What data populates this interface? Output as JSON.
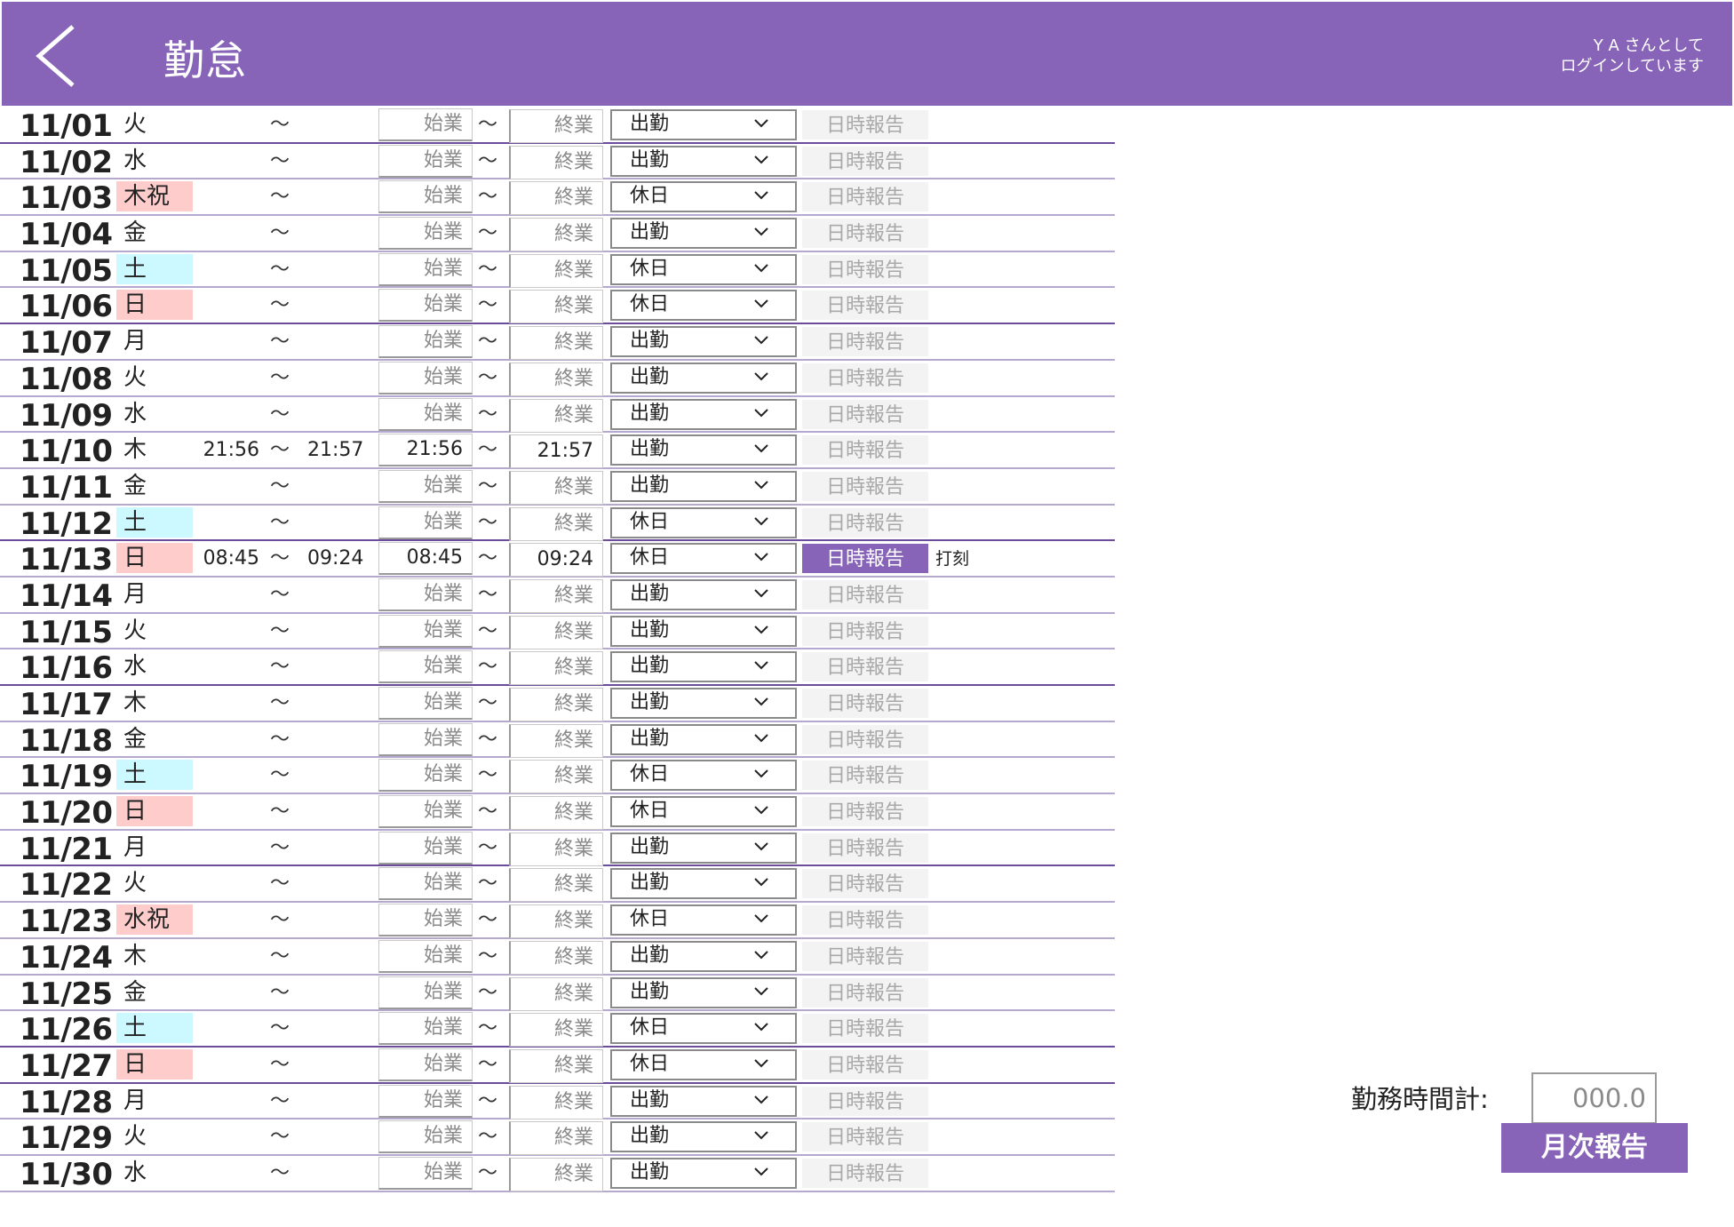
{
  "header": {
    "title": "勤怠",
    "login_line1": "Y A さんとして",
    "login_line2": "ログインしています",
    "back_icon": "chevron-left-icon",
    "color": "#8764b8"
  },
  "labels": {
    "tilde": "～",
    "start_placeholder": "始業",
    "end_placeholder": "終業",
    "report": "日時報告",
    "stamp": "打刻"
  },
  "rows": [
    {
      "date": "11/01",
      "dow": "火",
      "tag": "",
      "in": "",
      "out": "",
      "start": "",
      "end": "",
      "type": "出勤",
      "active": false,
      "stamp": false
    },
    {
      "date": "11/02",
      "dow": "水",
      "tag": "",
      "in": "",
      "out": "",
      "start": "",
      "end": "",
      "type": "出勤",
      "active": false,
      "stamp": false
    },
    {
      "date": "11/03",
      "dow": "木祝",
      "tag": "red",
      "in": "",
      "out": "",
      "start": "",
      "end": "",
      "type": "休日",
      "active": false,
      "stamp": false
    },
    {
      "date": "11/04",
      "dow": "金",
      "tag": "",
      "in": "",
      "out": "",
      "start": "",
      "end": "",
      "type": "出勤",
      "active": false,
      "stamp": false
    },
    {
      "date": "11/05",
      "dow": "土",
      "tag": "cyan",
      "in": "",
      "out": "",
      "start": "",
      "end": "",
      "type": "休日",
      "active": false,
      "stamp": false
    },
    {
      "date": "11/06",
      "dow": "日",
      "tag": "red",
      "in": "",
      "out": "",
      "start": "",
      "end": "",
      "type": "休日",
      "active": false,
      "stamp": false
    },
    {
      "date": "11/07",
      "dow": "月",
      "tag": "",
      "in": "",
      "out": "",
      "start": "",
      "end": "",
      "type": "出勤",
      "active": false,
      "stamp": false
    },
    {
      "date": "11/08",
      "dow": "火",
      "tag": "",
      "in": "",
      "out": "",
      "start": "",
      "end": "",
      "type": "出勤",
      "active": false,
      "stamp": false
    },
    {
      "date": "11/09",
      "dow": "水",
      "tag": "",
      "in": "",
      "out": "",
      "start": "",
      "end": "",
      "type": "出勤",
      "active": false,
      "stamp": false
    },
    {
      "date": "11/10",
      "dow": "木",
      "tag": "",
      "in": "21:56",
      "out": "21:57",
      "start": "21:56",
      "end": "21:57",
      "type": "出勤",
      "active": false,
      "stamp": false
    },
    {
      "date": "11/11",
      "dow": "金",
      "tag": "",
      "in": "",
      "out": "",
      "start": "",
      "end": "",
      "type": "出勤",
      "active": false,
      "stamp": false
    },
    {
      "date": "11/12",
      "dow": "土",
      "tag": "cyan",
      "in": "",
      "out": "",
      "start": "",
      "end": "",
      "type": "休日",
      "active": false,
      "stamp": false
    },
    {
      "date": "11/13",
      "dow": "日",
      "tag": "red",
      "in": "08:45",
      "out": "09:24",
      "start": "08:45",
      "end": "09:24",
      "type": "休日",
      "active": true,
      "stamp": true
    },
    {
      "date": "11/14",
      "dow": "月",
      "tag": "",
      "in": "",
      "out": "",
      "start": "",
      "end": "",
      "type": "出勤",
      "active": false,
      "stamp": false
    },
    {
      "date": "11/15",
      "dow": "火",
      "tag": "",
      "in": "",
      "out": "",
      "start": "",
      "end": "",
      "type": "出勤",
      "active": false,
      "stamp": false
    },
    {
      "date": "11/16",
      "dow": "水",
      "tag": "",
      "in": "",
      "out": "",
      "start": "",
      "end": "",
      "type": "出勤",
      "active": false,
      "stamp": false
    },
    {
      "date": "11/17",
      "dow": "木",
      "tag": "",
      "in": "",
      "out": "",
      "start": "",
      "end": "",
      "type": "出勤",
      "active": false,
      "stamp": false
    },
    {
      "date": "11/18",
      "dow": "金",
      "tag": "",
      "in": "",
      "out": "",
      "start": "",
      "end": "",
      "type": "出勤",
      "active": false,
      "stamp": false
    },
    {
      "date": "11/19",
      "dow": "土",
      "tag": "cyan",
      "in": "",
      "out": "",
      "start": "",
      "end": "",
      "type": "休日",
      "active": false,
      "stamp": false
    },
    {
      "date": "11/20",
      "dow": "日",
      "tag": "red",
      "in": "",
      "out": "",
      "start": "",
      "end": "",
      "type": "休日",
      "active": false,
      "stamp": false
    },
    {
      "date": "11/21",
      "dow": "月",
      "tag": "",
      "in": "",
      "out": "",
      "start": "",
      "end": "",
      "type": "出勤",
      "active": false,
      "stamp": false
    },
    {
      "date": "11/22",
      "dow": "火",
      "tag": "",
      "in": "",
      "out": "",
      "start": "",
      "end": "",
      "type": "出勤",
      "active": false,
      "stamp": false
    },
    {
      "date": "11/23",
      "dow": "水祝",
      "tag": "red",
      "in": "",
      "out": "",
      "start": "",
      "end": "",
      "type": "休日",
      "active": false,
      "stamp": false
    },
    {
      "date": "11/24",
      "dow": "木",
      "tag": "",
      "in": "",
      "out": "",
      "start": "",
      "end": "",
      "type": "出勤",
      "active": false,
      "stamp": false
    },
    {
      "date": "11/25",
      "dow": "金",
      "tag": "",
      "in": "",
      "out": "",
      "start": "",
      "end": "",
      "type": "出勤",
      "active": false,
      "stamp": false
    },
    {
      "date": "11/26",
      "dow": "土",
      "tag": "cyan",
      "in": "",
      "out": "",
      "start": "",
      "end": "",
      "type": "休日",
      "active": false,
      "stamp": false
    },
    {
      "date": "11/27",
      "dow": "日",
      "tag": "red",
      "in": "",
      "out": "",
      "start": "",
      "end": "",
      "type": "休日",
      "active": false,
      "stamp": false
    },
    {
      "date": "11/28",
      "dow": "月",
      "tag": "",
      "in": "",
      "out": "",
      "start": "",
      "end": "",
      "type": "出勤",
      "active": false,
      "stamp": false
    },
    {
      "date": "11/29",
      "dow": "火",
      "tag": "",
      "in": "",
      "out": "",
      "start": "",
      "end": "",
      "type": "出勤",
      "active": false,
      "stamp": false
    },
    {
      "date": "11/30",
      "dow": "水",
      "tag": "",
      "in": "",
      "out": "",
      "start": "",
      "end": "",
      "type": "出勤",
      "active": false,
      "stamp": false
    }
  ],
  "summary": {
    "total_label": "勤務時間計:",
    "total_value": "000.0",
    "monthly_button": "月次報告"
  }
}
